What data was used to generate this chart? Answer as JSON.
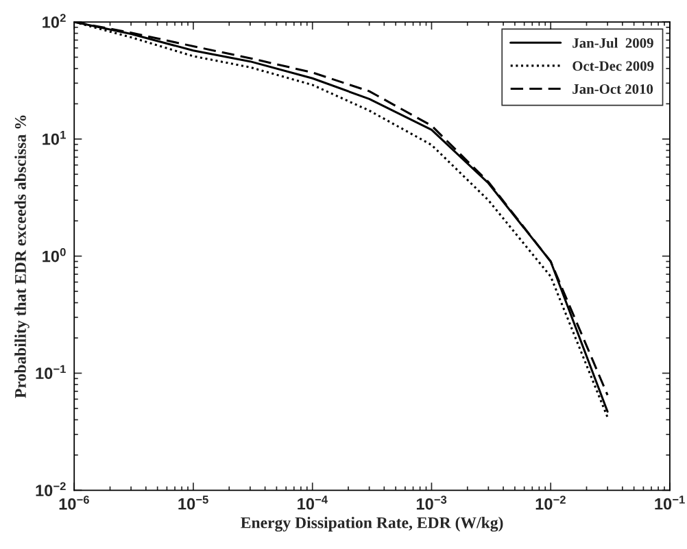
{
  "chart_data": {
    "type": "line",
    "xlabel": "Energy Dissipation Rate, EDR (W/kg)",
    "ylabel": "Probability that EDR exceeds abscissa %",
    "x": [
      1e-06,
      3e-06,
      1e-05,
      3e-05,
      0.0001,
      0.0003,
      0.001,
      0.003,
      0.01,
      0.03
    ],
    "series": [
      {
        "name": "Jan-Jul  2009",
        "color": "#000000",
        "line_style": "solid",
        "values": [
          100,
          79,
          57,
          46,
          33,
          22,
          12,
          4.2,
          0.9,
          0.047
        ]
      },
      {
        "name": "Oct-Dec 2009",
        "color": "#000000",
        "line_style": "dotted",
        "values": [
          100,
          74,
          51,
          41,
          29,
          17.5,
          8.9,
          3.0,
          0.67,
          0.042
        ]
      },
      {
        "name": "Jan-Oct 2010",
        "color": "#000000",
        "line_style": "dashed",
        "values": [
          100,
          81,
          62,
          49,
          37,
          25.6,
          13,
          4.3,
          0.9,
          0.065
        ]
      }
    ],
    "log": "xy",
    "xlim": [
      1e-06,
      0.1
    ],
    "ylim": [
      0.01,
      100
    ],
    "xticks": [
      {
        "value": 1e-06,
        "label": "10$^{−6}$"
      },
      {
        "value": 1e-05,
        "label": "10$^{−5}$"
      },
      {
        "value": 0.0001,
        "label": "10$^{−4}$"
      },
      {
        "value": 0.001,
        "label": "10$^{−3}$"
      },
      {
        "value": 0.01,
        "label": "10$^{−2}$"
      },
      {
        "value": 0.1,
        "label": "10$^{−1}$"
      }
    ],
    "yticks": [
      {
        "value": 0.01,
        "label": "10$^{−2}$"
      },
      {
        "value": 0.1,
        "label": "10$^{−1}$"
      },
      {
        "value": 1,
        "label": "10$^{0}$"
      },
      {
        "value": 10,
        "label": "10$^{1}$"
      },
      {
        "value": 100,
        "label": "10$^{2}$"
      }
    ],
    "grid": false,
    "legend": "top right"
  }
}
